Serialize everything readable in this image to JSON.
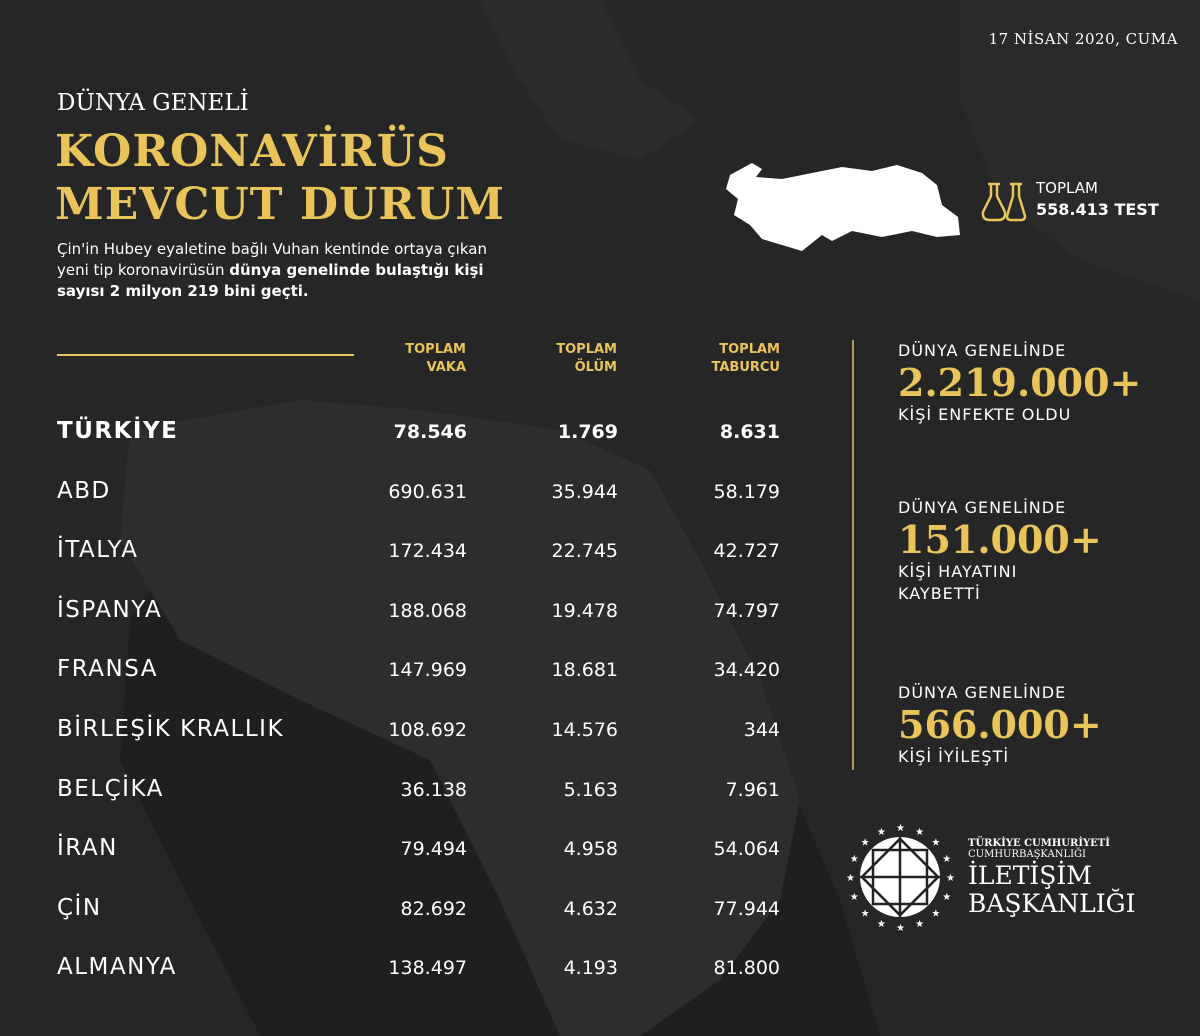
{
  "date": "17 NİSAN 2020, CUMA",
  "subtitle": "DÜNYA GENELİ",
  "title_line1": "KORONAVİRÜS",
  "title_line2": "MEVCUT DURUM",
  "desc_normal1": "Çin'in Hubey eyaletine bağlı Vuhan kentinde ortaya çıkan yeni tip koronavirüsün ",
  "desc_bold": "dünya genelinde bulaştığı kişi sayısı 2 milyon 219 bini geçti.",
  "test": {
    "label": "TOPLAM",
    "value": "558.413 TEST",
    "icon": "lab-flask-icon"
  },
  "table": {
    "headers": [
      [
        "TOPLAM",
        "VAKA"
      ],
      [
        "TOPLAM",
        "ÖLÜM"
      ],
      [
        "TOPLAM",
        "TABURCU"
      ]
    ],
    "rows": [
      [
        "TÜRKİYE",
        "78.546",
        "1.769",
        "8.631"
      ],
      [
        "ABD",
        "690.631",
        "35.944",
        "58.179"
      ],
      [
        "İTALYA",
        "172.434",
        "22.745",
        "42.727"
      ],
      [
        "İSPANYA",
        "188.068",
        "19.478",
        "74.797"
      ],
      [
        "FRANSA",
        "147.969",
        "18.681",
        "34.420"
      ],
      [
        "BİRLEŞİK KRALLIK",
        "108.692",
        "14.576",
        "344"
      ],
      [
        "BELÇİKA",
        "36.138",
        "5.163",
        "7.961"
      ],
      [
        "İRAN",
        "79.494",
        "4.958",
        "54.064"
      ],
      [
        "ÇİN",
        "82.692",
        "4.632",
        "77.944"
      ],
      [
        "ALMANYA",
        "138.497",
        "4.193",
        "81.800"
      ]
    ]
  },
  "stats": [
    {
      "label": "DÜNYA GENELİNDE",
      "value": "2.219.000+",
      "caption": "KİŞİ ENFEKTE OLDU"
    },
    {
      "label": "DÜNYA GENELİNDE",
      "value": "151.000+",
      "caption": "KİŞİ HAYATINI KAYBETTİ"
    },
    {
      "label": "DÜNYA GENELİNDE",
      "value": "566.000+",
      "caption": "KİŞİ İYİLEŞTİ"
    }
  ],
  "logo": {
    "line1": "TÜRKİYE CUMHURİYETİ",
    "line2": "CUMHURBAŞKANLIĞI",
    "line3": "İLETİŞİM",
    "line4": "BAŞKANLIĞI"
  },
  "colors": {
    "accent": "#e9c45b",
    "background": "#1f1f1f"
  }
}
